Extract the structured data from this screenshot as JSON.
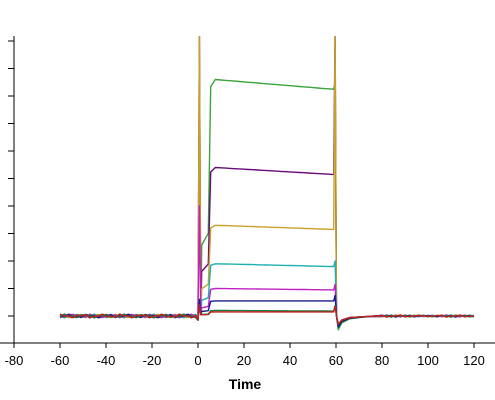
{
  "chart_data": {
    "type": "line",
    "xlabel": "Time",
    "ylabel": "",
    "xlim": [
      -80,
      125
    ],
    "xticks": [
      -80,
      -60,
      -40,
      -20,
      0,
      20,
      40,
      60,
      80,
      100,
      120
    ],
    "ylim": [
      -2,
      108
    ],
    "yticks": [
      0,
      10,
      20,
      30,
      40,
      50,
      60,
      70,
      80,
      90,
      100
    ],
    "grid": false,
    "series": [
      {
        "color": "#3aa53a",
        "assoc": [
          86,
          82.5
        ],
        "spike": 6,
        "dip": -5
      },
      {
        "color": "#6a0a7a",
        "assoc": [
          54,
          51.5
        ],
        "spike": 104,
        "dip": -4
      },
      {
        "color": "#c8a028",
        "assoc": [
          33,
          31.5
        ],
        "spike": 104,
        "dip": -3
      },
      {
        "color": "#20b0b0",
        "assoc": [
          19,
          18
        ],
        "spike": 6,
        "dip": -3
      },
      {
        "color": "#c020c0",
        "assoc": [
          10,
          9.5
        ],
        "spike": 40,
        "dip": -3
      },
      {
        "color": "#1a1a8a",
        "assoc": [
          5.5,
          5.5
        ],
        "spike": 6,
        "dip": -4
      },
      {
        "color": "#1a7a3a",
        "assoc": [
          2,
          1.8
        ],
        "spike": 4,
        "dip": -3
      },
      {
        "color": "#c02020",
        "assoc": [
          1.5,
          1.5
        ],
        "spike": 4,
        "dip": -3
      }
    ]
  }
}
